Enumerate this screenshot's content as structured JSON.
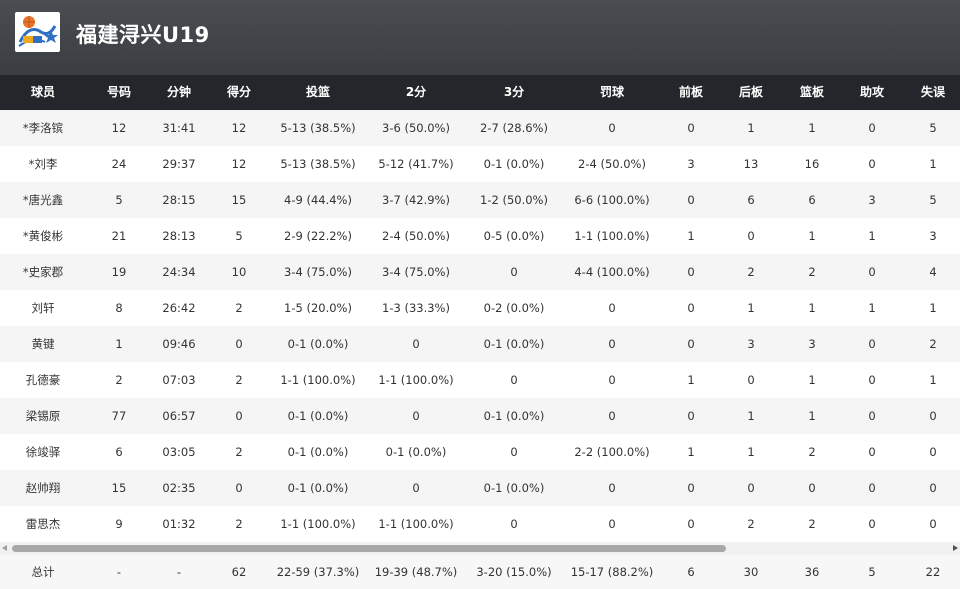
{
  "team": {
    "name": "福建浔兴U19",
    "logo_colors": {
      "primary": "#2f6fc4",
      "accent": "#f2a81d",
      "ball": "#e8742a"
    }
  },
  "columns": [
    "球员",
    "号码",
    "分钟",
    "得分",
    "投篮",
    "2分",
    "3分",
    "罚球",
    "前板",
    "后板",
    "篮板",
    "助攻",
    "失误"
  ],
  "rows": [
    [
      "*李洛镔",
      "12",
      "31:41",
      "12",
      "5-13 (38.5%)",
      "3-6 (50.0%)",
      "2-7 (28.6%)",
      "0",
      "0",
      "1",
      "1",
      "0",
      "5"
    ],
    [
      "*刘李",
      "24",
      "29:37",
      "12",
      "5-13 (38.5%)",
      "5-12 (41.7%)",
      "0-1 (0.0%)",
      "2-4 (50.0%)",
      "3",
      "13",
      "16",
      "0",
      "1"
    ],
    [
      "*唐光鑫",
      "5",
      "28:15",
      "15",
      "4-9 (44.4%)",
      "3-7 (42.9%)",
      "1-2 (50.0%)",
      "6-6 (100.0%)",
      "0",
      "6",
      "6",
      "3",
      "5"
    ],
    [
      "*黄俊彬",
      "21",
      "28:13",
      "5",
      "2-9 (22.2%)",
      "2-4 (50.0%)",
      "0-5 (0.0%)",
      "1-1 (100.0%)",
      "1",
      "0",
      "1",
      "1",
      "3"
    ],
    [
      "*史家郡",
      "19",
      "24:34",
      "10",
      "3-4 (75.0%)",
      "3-4 (75.0%)",
      "0",
      "4-4 (100.0%)",
      "0",
      "2",
      "2",
      "0",
      "4"
    ],
    [
      "刘轩",
      "8",
      "26:42",
      "2",
      "1-5 (20.0%)",
      "1-3 (33.3%)",
      "0-2 (0.0%)",
      "0",
      "0",
      "1",
      "1",
      "1",
      "1"
    ],
    [
      "黄键",
      "1",
      "09:46",
      "0",
      "0-1 (0.0%)",
      "0",
      "0-1 (0.0%)",
      "0",
      "0",
      "3",
      "3",
      "0",
      "2"
    ],
    [
      "孔德豪",
      "2",
      "07:03",
      "2",
      "1-1 (100.0%)",
      "1-1 (100.0%)",
      "0",
      "0",
      "1",
      "0",
      "1",
      "0",
      "1"
    ],
    [
      "梁锡原",
      "77",
      "06:57",
      "0",
      "0-1 (0.0%)",
      "0",
      "0-1 (0.0%)",
      "0",
      "0",
      "1",
      "1",
      "0",
      "0"
    ],
    [
      "徐竣驿",
      "6",
      "03:05",
      "2",
      "0-1 (0.0%)",
      "0-1 (0.0%)",
      "0",
      "2-2 (100.0%)",
      "1",
      "1",
      "2",
      "0",
      "0"
    ],
    [
      "赵帅翔",
      "15",
      "02:35",
      "0",
      "0-1 (0.0%)",
      "0",
      "0-1 (0.0%)",
      "0",
      "0",
      "0",
      "0",
      "0",
      "0"
    ],
    [
      "雷思杰",
      "9",
      "01:32",
      "2",
      "1-1 (100.0%)",
      "1-1 (100.0%)",
      "0",
      "0",
      "0",
      "2",
      "2",
      "0",
      "0"
    ]
  ],
  "totals": [
    "总计",
    "-",
    "-",
    "62",
    "22-59 (37.3%)",
    "19-39 (48.7%)",
    "3-20 (15.0%)",
    "15-17 (88.2%)",
    "6",
    "30",
    "36",
    "5",
    "22"
  ]
}
